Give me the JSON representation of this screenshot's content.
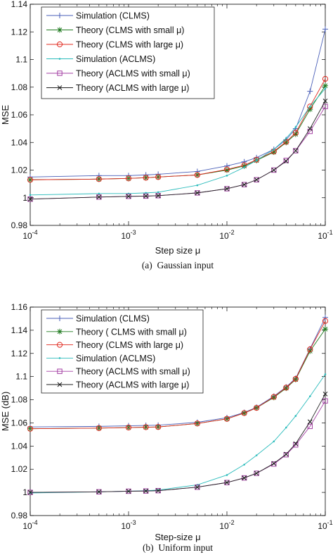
{
  "chart_data": [
    {
      "type": "line",
      "caption": "(a)  Gaussian input",
      "xlabel": "Step size μ",
      "ylabel": "MSE",
      "xscale": "log",
      "xlim": [
        0.0001,
        0.1
      ],
      "ylim": [
        0.98,
        1.14
      ],
      "yticks": [
        "0.98",
        "1",
        "1.02",
        "1.04",
        "1.06",
        "1.08",
        "1.1",
        "1.12",
        "1.14"
      ],
      "grid": false,
      "legend_position": "top-left",
      "x": [
        0.0001,
        0.0005,
        0.001,
        0.0015,
        0.002,
        0.005,
        0.01,
        0.015,
        0.02,
        0.03,
        0.04,
        0.05,
        0.07,
        0.1
      ],
      "series": [
        {
          "name": "Simulation (CLMS)",
          "color": "#4a5fb8",
          "marker": "plus",
          "values": [
            1.015,
            1.016,
            1.016,
            1.0165,
            1.017,
            1.019,
            1.023,
            1.026,
            1.029,
            1.035,
            1.042,
            1.05,
            1.077,
            1.122
          ]
        },
        {
          "name": "Theory (CLMS with small μ)",
          "color": "#1f7a1f",
          "marker": "star",
          "values": [
            1.013,
            1.0135,
            1.014,
            1.0145,
            1.015,
            1.0165,
            1.02,
            1.023,
            1.027,
            1.033,
            1.04,
            1.046,
            1.064,
            1.081
          ]
        },
        {
          "name": "Theory (CLMS with large μ)",
          "color": "#e0281e",
          "marker": "circle",
          "values": [
            1.013,
            1.0135,
            1.014,
            1.0145,
            1.015,
            1.0165,
            1.0205,
            1.0235,
            1.0275,
            1.0335,
            1.0405,
            1.047,
            1.066,
            1.086
          ]
        },
        {
          "name": "Simulation (ACLMS)",
          "color": "#2bbcbc",
          "marker": "dot",
          "values": [
            1.002,
            1.003,
            1.003,
            1.0035,
            1.004,
            1.009,
            1.016,
            1.022,
            1.027,
            1.035,
            1.043,
            1.051,
            1.066,
            1.079
          ]
        },
        {
          "name": "Theory (ACLMS with small μ)",
          "color": "#a33fa3",
          "marker": "square",
          "values": [
            0.999,
            1.0005,
            1.001,
            1.0012,
            1.0015,
            1.0035,
            1.0065,
            1.0095,
            1.013,
            1.02,
            1.027,
            1.034,
            1.048,
            1.066
          ]
        },
        {
          "name": "Theory (ACLMS with large μ)",
          "color": "#222222",
          "marker": "x",
          "values": [
            0.999,
            1.0005,
            1.001,
            1.0012,
            1.0015,
            1.0035,
            1.0065,
            1.0095,
            1.013,
            1.02,
            1.0265,
            1.034,
            1.05,
            1.07
          ]
        }
      ]
    },
    {
      "type": "line",
      "caption": "(b)  Uniform input",
      "xlabel": "Step-size μ",
      "ylabel": "MSE (dB)",
      "xscale": "log",
      "xlim": [
        0.0001,
        0.1
      ],
      "ylim": [
        0.98,
        1.16
      ],
      "yticks": [
        "0.98",
        "1",
        "1.02",
        "1.04",
        "1.06",
        "1.08",
        "1.1",
        "1.12",
        "1.14",
        "1.16"
      ],
      "grid": false,
      "legend_position": "top-left",
      "x": [
        0.0001,
        0.0005,
        0.001,
        0.0015,
        0.002,
        0.005,
        0.01,
        0.015,
        0.02,
        0.03,
        0.04,
        0.05,
        0.07,
        0.1
      ],
      "series": [
        {
          "name": "Simulation (CLMS)",
          "color": "#4a5fb8",
          "marker": "plus",
          "values": [
            1.0565,
            1.057,
            1.0575,
            1.0578,
            1.058,
            1.0605,
            1.0645,
            1.069,
            1.0735,
            1.083,
            1.091,
            1.0985,
            1.124,
            1.151
          ]
        },
        {
          "name": "Theory ( CLMS with small μ)",
          "color": "#1f7a1f",
          "marker": "star",
          "values": [
            1.055,
            1.0555,
            1.056,
            1.0563,
            1.0565,
            1.0595,
            1.0635,
            1.0685,
            1.073,
            1.082,
            1.09,
            1.0975,
            1.122,
            1.141
          ]
        },
        {
          "name": "Theory (CLMS with large μ)",
          "color": "#e0281e",
          "marker": "circle",
          "values": [
            1.055,
            1.0555,
            1.056,
            1.0563,
            1.0565,
            1.0595,
            1.0635,
            1.0685,
            1.073,
            1.0825,
            1.0905,
            1.098,
            1.1235,
            1.148
          ]
        },
        {
          "name": "Simulation (ACLMS)",
          "color": "#2bbcbc",
          "marker": "dot",
          "values": [
            0.9995,
            1.0005,
            1.001,
            1.0015,
            1.002,
            1.0065,
            1.015,
            1.024,
            1.032,
            1.044,
            1.056,
            1.066,
            1.083,
            1.102
          ]
        },
        {
          "name": "Theory (ACLMS with small μ)",
          "color": "#a33fa3",
          "marker": "square",
          "values": [
            1.0,
            1.0005,
            1.001,
            1.0012,
            1.0015,
            1.0045,
            1.0085,
            1.0125,
            1.0165,
            1.0245,
            1.0325,
            1.041,
            1.057,
            1.079
          ]
        },
        {
          "name": "Theory (ACLMS with large μ)",
          "color": "#222222",
          "marker": "x",
          "values": [
            1.0,
            1.0005,
            1.001,
            1.0012,
            1.0015,
            1.0045,
            1.0085,
            1.0125,
            1.0165,
            1.025,
            1.033,
            1.042,
            1.061,
            1.085
          ]
        }
      ]
    }
  ]
}
